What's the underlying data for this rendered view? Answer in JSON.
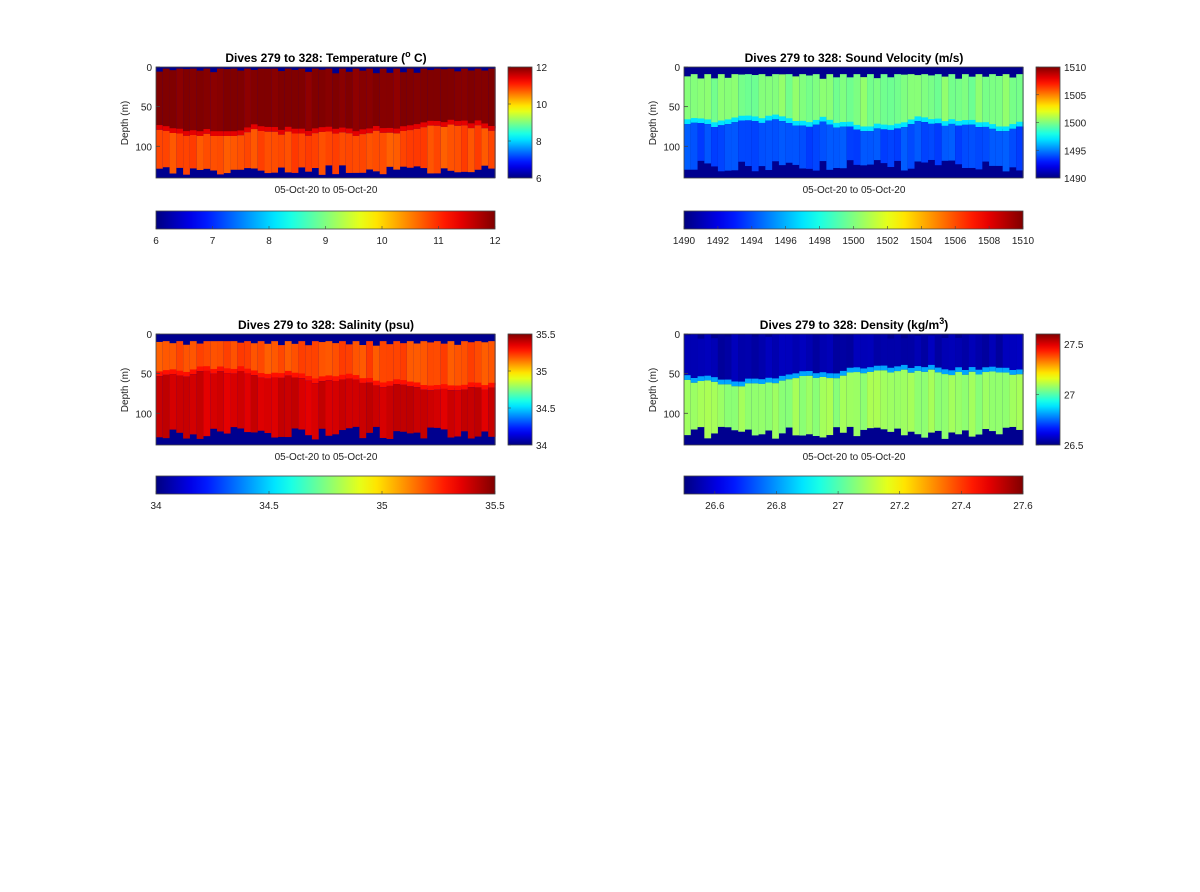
{
  "figure": {
    "charts": [
      {
        "title_main": "Dives 279 to 328: Temperature (",
        "title_sup": "o",
        "title_tail": " C)",
        "xlabel": "05-Oct-20 to 05-Oct-20",
        "ylabel": "Depth (m)"
      },
      {
        "title_main": "Dives 279 to 328: Sound Velocity (m/s)",
        "title_sup": "",
        "title_tail": "",
        "xlabel": "05-Oct-20 to 05-Oct-20",
        "ylabel": "Depth (m)"
      },
      {
        "title_main": "Dives 279 to 328: Salinity (psu)",
        "title_sup": "",
        "title_tail": "",
        "xlabel": "05-Oct-20 to 05-Oct-20",
        "ylabel": "Depth (m)"
      },
      {
        "title_main": "Dives 279 to 328: Density (kg/m",
        "title_sup": "3",
        "title_tail": ")",
        "xlabel": "05-Oct-20 to 05-Oct-20",
        "ylabel": "Depth (m)"
      }
    ]
  },
  "chart_data": [
    {
      "type": "heatmap",
      "title": "Dives 279 to 328: Temperature (o C)",
      "variable": "Temperature",
      "dives": [
        279,
        328
      ],
      "xlabel": "05-Oct-20 to 05-Oct-20",
      "ylabel": "Depth (m)",
      "y_reversed": true,
      "ylim": [
        0,
        140
      ],
      "yticks": [
        0,
        50,
        100
      ],
      "clim": [
        6,
        12
      ],
      "colormap": "jet",
      "no_data_color": "#00008f",
      "side_colorbar_ticks": [
        "6",
        "8",
        "10",
        "12"
      ],
      "bottom_colorbar_ticks": [
        "6",
        "7",
        "8",
        "9",
        "10",
        "11",
        "12"
      ],
      "layers": [
        {
          "name": "upper",
          "depth_start": 0,
          "depth_end_range": [
            66,
            84
          ],
          "value": 12
        },
        {
          "name": "lower",
          "depth_range_start": "upper_end",
          "value": 10.8
        },
        {
          "name": "bottom_no_data",
          "depth_start_range": [
            124,
            138
          ]
        }
      ],
      "top_no_data_depth": 2,
      "column_count": 50
    },
    {
      "type": "heatmap",
      "title": "Dives 279 to 328: Sound Velocity (m/s)",
      "variable": "Sound Velocity",
      "dives": [
        279,
        328
      ],
      "xlabel": "05-Oct-20 to 05-Oct-20",
      "ylabel": "Depth (m)",
      "y_reversed": true,
      "ylim": [
        0,
        140
      ],
      "yticks": [
        0,
        50,
        100
      ],
      "clim": [
        1490,
        1510
      ],
      "colormap": "jet",
      "no_data_color": "#00008f",
      "side_colorbar_ticks": [
        "1490",
        "1495",
        "1500",
        "1505",
        "1510"
      ],
      "bottom_colorbar_ticks": [
        "1490",
        "1492",
        "1494",
        "1496",
        "1498",
        "1500",
        "1502",
        "1504",
        "1506",
        "1508",
        "1510"
      ],
      "layers": [
        {
          "name": "upper",
          "depth_start": 7,
          "depth_end_range": [
            52,
            78
          ],
          "value": 1500
        },
        {
          "name": "lower",
          "depth_range_start": "upper_end",
          "value": 1494
        },
        {
          "name": "bottom_no_data",
          "depth_start_range": [
            117,
            133
          ]
        }
      ],
      "top_no_data_depth": 9,
      "column_count": 50
    },
    {
      "type": "heatmap",
      "title": "Dives 279 to 328: Salinity (psu)",
      "variable": "Salinity",
      "dives": [
        279,
        328
      ],
      "xlabel": "05-Oct-20 to 05-Oct-20",
      "ylabel": "Depth (m)",
      "y_reversed": true,
      "ylim": [
        0,
        140
      ],
      "yticks": [
        0,
        50,
        100
      ],
      "clim": [
        34,
        35.5
      ],
      "colormap": "jet",
      "no_data_color": "#00008f",
      "side_colorbar_ticks": [
        "34",
        "34.5",
        "35",
        "35.5"
      ],
      "bottom_colorbar_ticks": [
        "34",
        "34.5",
        "35",
        "35.5"
      ],
      "layers": [
        {
          "name": "upper",
          "depth_start": 7,
          "depth_end_range": [
            38,
            68
          ],
          "value": 35.2
        },
        {
          "name": "lower",
          "depth_range_start": "upper_end",
          "value": 35.38
        },
        {
          "name": "bottom_no_data",
          "depth_start_range": [
            117,
            133
          ]
        }
      ],
      "top_no_data_depth": 9,
      "column_count": 50
    },
    {
      "type": "heatmap",
      "title": "Dives 279 to 328: Density (kg/m3)",
      "variable": "Density",
      "dives": [
        279,
        328
      ],
      "xlabel": "05-Oct-20 to 05-Oct-20",
      "ylabel": "Depth (m)",
      "y_reversed": true,
      "ylim": [
        0,
        140
      ],
      "yticks": [
        0,
        50,
        100
      ],
      "clim": [
        26.5,
        27.6
      ],
      "colormap": "jet",
      "no_data_color": "#00008f",
      "side_colorbar_ticks": [
        "26.5",
        "27",
        "27.5"
      ],
      "bottom_colorbar_ticks": [
        "26.6",
        "26.8",
        "27",
        "27.2",
        "27.4",
        "27.6"
      ],
      "layers": [
        {
          "name": "upper",
          "depth_start": 0,
          "depth_end_range": [
            42,
            70
          ],
          "value": 26.55
        },
        {
          "name": "lower",
          "depth_range_start": "upper_end",
          "value": 27.08
        },
        {
          "name": "bottom_no_data",
          "depth_start_range": [
            117,
            133
          ]
        }
      ],
      "top_no_data_depth": 0,
      "column_count": 50
    }
  ]
}
